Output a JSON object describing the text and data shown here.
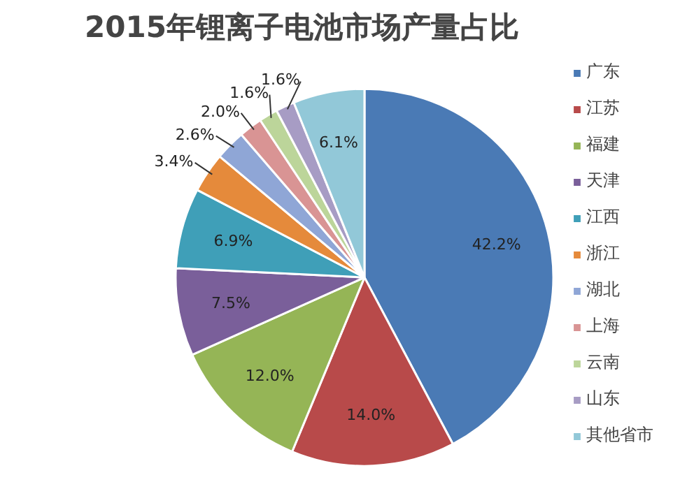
{
  "chart_data": {
    "type": "pie",
    "title": "2015年锂离子电池市场产量占比",
    "categories": [
      "广东",
      "江苏",
      "福建",
      "天津",
      "江西",
      "浙江",
      "湖北",
      "上海",
      "云南",
      "山东",
      "其他省市"
    ],
    "values": [
      42.2,
      14.0,
      12.0,
      7.5,
      6.9,
      3.4,
      2.6,
      2.0,
      1.6,
      1.6,
      6.1
    ],
    "colors": [
      "#4a7ab5",
      "#b84a4a",
      "#95b556",
      "#7a5f9a",
      "#3f9fb8",
      "#e58a3b",
      "#8fa6d6",
      "#d99494",
      "#bcd59a",
      "#a79cc4",
      "#92c8d8"
    ],
    "value_labels": [
      "42.2%",
      "14.0%",
      "12.0%",
      "7.5%",
      "6.9%",
      "3.4%",
      "2.6%",
      "2.0%",
      "1.6%",
      "1.6%",
      "6.1%"
    ],
    "legend": "right"
  }
}
